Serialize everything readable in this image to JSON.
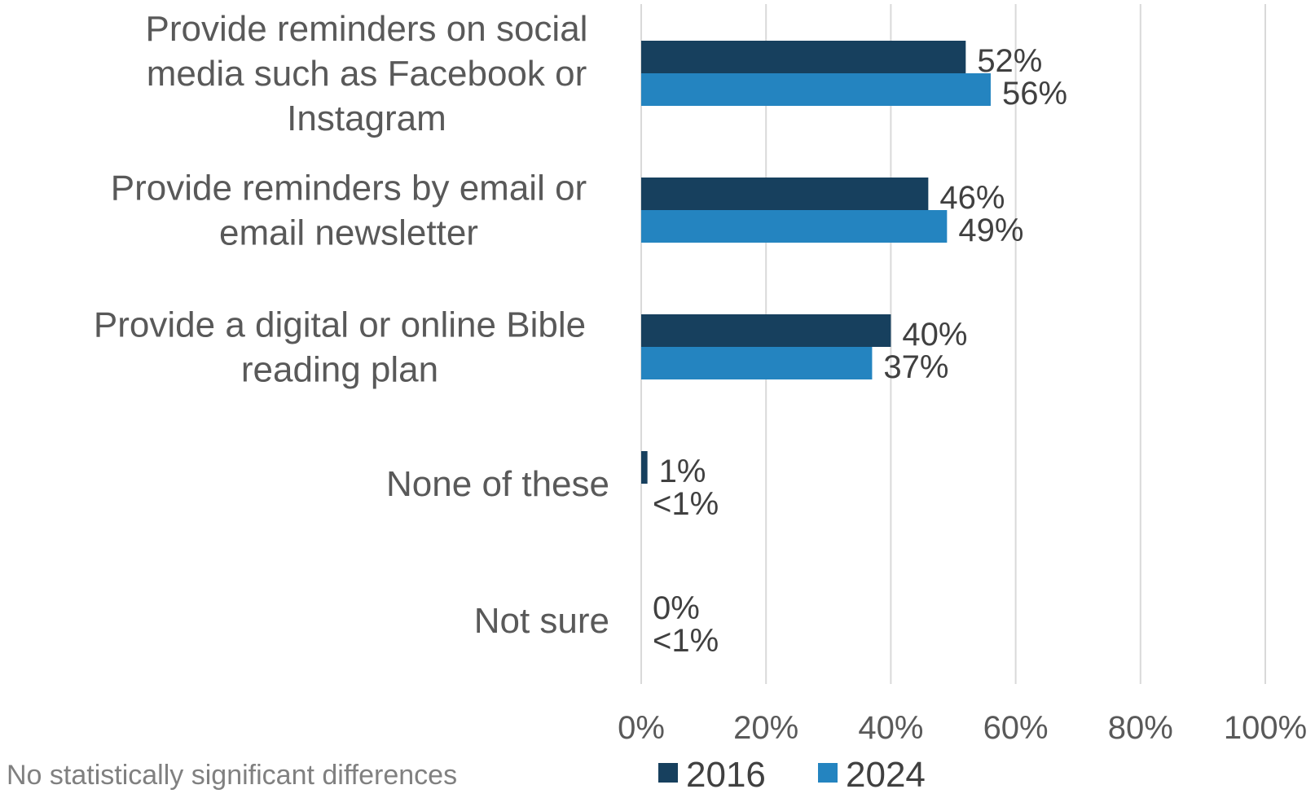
{
  "chart_data": {
    "type": "bar",
    "orientation": "horizontal",
    "categories": [
      [
        "Provide reminders on social",
        "media such as Facebook or",
        "Instagram"
      ],
      [
        "Provide reminders by email or",
        "email newsletter"
      ],
      [
        "Provide a digital or online Bible",
        "reading plan"
      ],
      [
        "None of these"
      ],
      [
        "Not sure"
      ]
    ],
    "series": [
      {
        "name": "2016",
        "color": "#17405E",
        "values": [
          52,
          46,
          40,
          1,
          0
        ],
        "labels": [
          "52%",
          "46%",
          "40%",
          "1%",
          "0%"
        ]
      },
      {
        "name": "2024",
        "color": "#2484C0",
        "values": [
          56,
          49,
          37,
          0.3,
          0.3
        ],
        "labels": [
          "56%",
          "49%",
          "37%",
          "<1%",
          "<1%"
        ]
      }
    ],
    "xlim": [
      0,
      100
    ],
    "xticks": [
      0,
      20,
      40,
      60,
      80,
      100
    ],
    "xtick_labels": [
      "0%",
      "20%",
      "40%",
      "60%",
      "80%",
      "100%"
    ],
    "grid": true,
    "legend_position": "bottom",
    "footnote": "No statistically significant differences"
  },
  "colors": {
    "grid": "#D9D9D9",
    "series_2016": "#17405E",
    "series_2024": "#2484C0"
  }
}
